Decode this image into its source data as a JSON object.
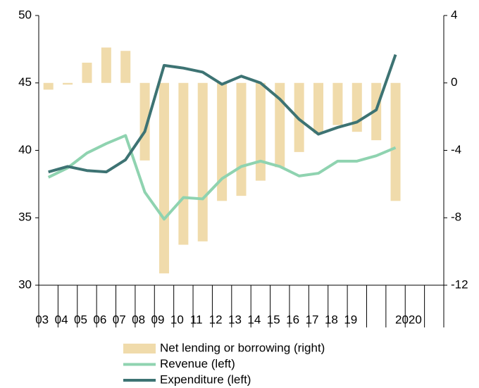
{
  "chart_data": {
    "type": "bar-line",
    "categories": [
      "03",
      "04",
      "05",
      "06",
      "07",
      "08",
      "09",
      "10",
      "11",
      "12",
      "13",
      "14",
      "15",
      "16",
      "17",
      "18",
      "19",
      null,
      null,
      "2020",
      null
    ],
    "series": [
      {
        "name": "Net lending or borrowing (right)",
        "type": "bar",
        "axis": "y2",
        "color": "#f0dbab",
        "values": [
          -0.4,
          -0.1,
          1.2,
          2.1,
          1.9,
          -4.6,
          -11.3,
          -9.6,
          -9.4,
          -7.0,
          -6.7,
          -5.8,
          -5.0,
          -4.1,
          -3.0,
          -2.5,
          -2.9,
          -3.4,
          -7.0,
          null,
          null
        ]
      },
      {
        "name": "Revenue (left)",
        "type": "line",
        "axis": "y",
        "color": "#8fd3b0",
        "values": [
          38.0,
          38.7,
          39.8,
          40.5,
          41.1,
          36.9,
          34.9,
          36.5,
          36.4,
          37.9,
          38.8,
          39.2,
          38.8,
          38.1,
          38.3,
          39.2,
          39.2,
          39.6,
          40.2,
          null,
          null
        ]
      },
      {
        "name": "Expenditure (left)",
        "type": "line",
        "axis": "y",
        "color": "#3d7373",
        "values": [
          38.4,
          38.8,
          38.5,
          38.4,
          39.3,
          41.4,
          46.3,
          46.1,
          45.8,
          44.9,
          45.5,
          45.0,
          43.8,
          42.3,
          41.2,
          41.7,
          42.1,
          43.0,
          47.1,
          null,
          null
        ]
      }
    ],
    "ylim": [
      30,
      50
    ],
    "yticks": [
      30,
      35,
      40,
      45,
      50
    ],
    "y2lim": [
      -12,
      4
    ],
    "y2ticks": [
      -12,
      -8,
      -4,
      0,
      4
    ],
    "legend": "bottom"
  }
}
